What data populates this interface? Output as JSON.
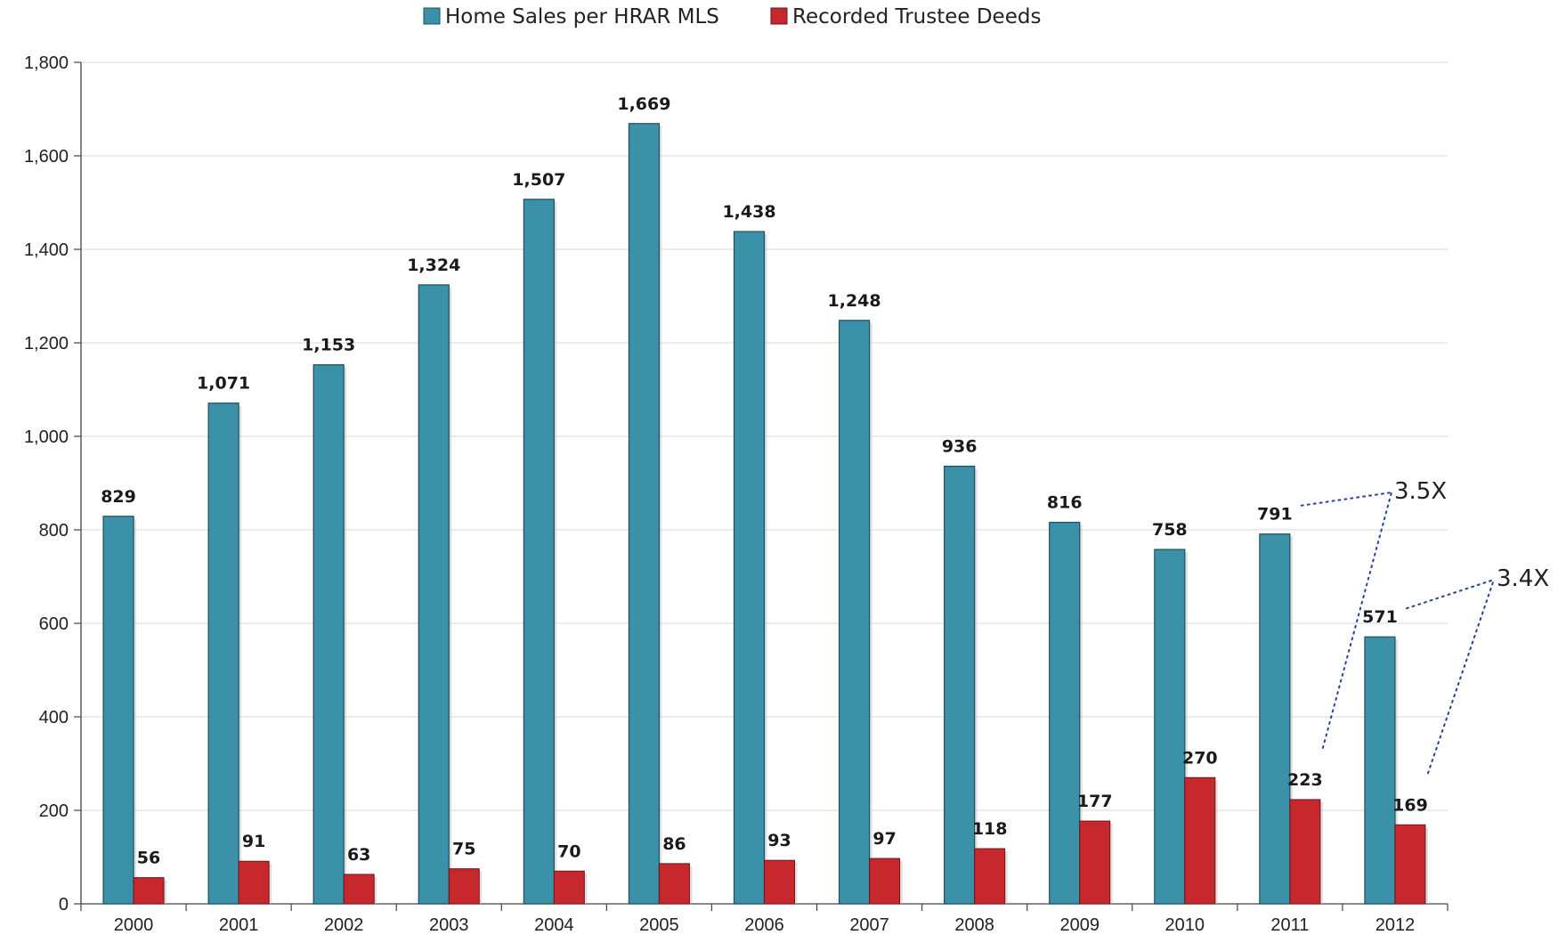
{
  "chart_data": {
    "type": "bar",
    "categories": [
      "2000",
      "2001",
      "2002",
      "2003",
      "2004",
      "2005",
      "2006",
      "2007",
      "2008",
      "2009",
      "2010",
      "2011",
      "2012"
    ],
    "series": [
      {
        "name": "Home Sales per HRAR MLS",
        "color": "#3a91a8",
        "values": [
          829,
          1071,
          1153,
          1324,
          1507,
          1669,
          1438,
          1248,
          936,
          816,
          758,
          791,
          571
        ],
        "labels": [
          "829",
          "1,071",
          "1,153",
          "1,324",
          "1,507",
          "1,669",
          "1,438",
          "1,248",
          "936",
          "816",
          "758",
          "791",
          "571"
        ]
      },
      {
        "name": "Recorded Trustee Deeds",
        "color": "#c6282d",
        "values": [
          56,
          91,
          63,
          75,
          70,
          86,
          93,
          97,
          118,
          177,
          270,
          223,
          169
        ],
        "labels": [
          "56",
          "91",
          "63",
          "75",
          "70",
          "86",
          "93",
          "97",
          "118",
          "177",
          "270",
          "223",
          "169"
        ]
      }
    ],
    "ylim": [
      0,
      1800
    ],
    "yticks": [
      {
        "value": 0,
        "label": "0"
      },
      {
        "value": 200,
        "label": "200"
      },
      {
        "value": 400,
        "label": "400"
      },
      {
        "value": 600,
        "label": "600"
      },
      {
        "value": 800,
        "label": "800"
      },
      {
        "value": 1000,
        "label": "1,000"
      },
      {
        "value": 1200,
        "label": "1,200"
      },
      {
        "value": 1400,
        "label": "1,400"
      },
      {
        "value": 1600,
        "label": "1,600"
      },
      {
        "value": 1800,
        "label": "1,800"
      }
    ],
    "grid": true,
    "legend_position": "top-center",
    "annotations": [
      {
        "text": "3.5X",
        "category": "2011",
        "color": "#2b3fa0"
      },
      {
        "text": "3.4X",
        "category": "2012",
        "color": "#2b3fa0"
      }
    ]
  }
}
